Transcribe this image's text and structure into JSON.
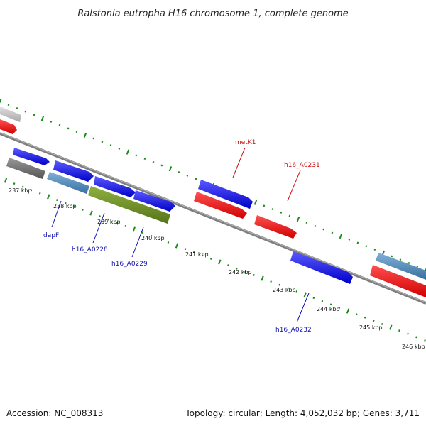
{
  "title": "Ralstonia eutropha H16 chromosome 1, complete genome",
  "footer": {
    "accession": "Accession: NC_008313",
    "summary": "Topology: circular; Length: 4,052,032 bp; Genes: 3,711"
  },
  "colors": {
    "backbone": "#7f7f7f",
    "tick": "#1a8a1a",
    "forward_gene": "#1010e0",
    "reverse_gene": "#ee1010",
    "blue_label": "#1010b0",
    "red_label": "#cc1010",
    "steel": "#4682b4",
    "olive": "#6b8e23",
    "gray": "#707070",
    "light_gray": "#c8c8c8"
  },
  "scale_labels": [
    "237 kbp",
    "238 kbp",
    "239 kbp",
    "240 kbp",
    "241 kbp",
    "242 kbp",
    "243 kbp",
    "244 kbp",
    "245 kbp",
    "246 kbp"
  ],
  "gene_labels": [
    {
      "text": "dapF",
      "color": "blue"
    },
    {
      "text": "h16_A0228",
      "color": "blue"
    },
    {
      "text": "h16_A0229",
      "color": "blue"
    },
    {
      "text": "metK1",
      "color": "red"
    },
    {
      "text": "h16_A0231",
      "color": "red"
    },
    {
      "text": "h16_A0232",
      "color": "blue"
    }
  ]
}
